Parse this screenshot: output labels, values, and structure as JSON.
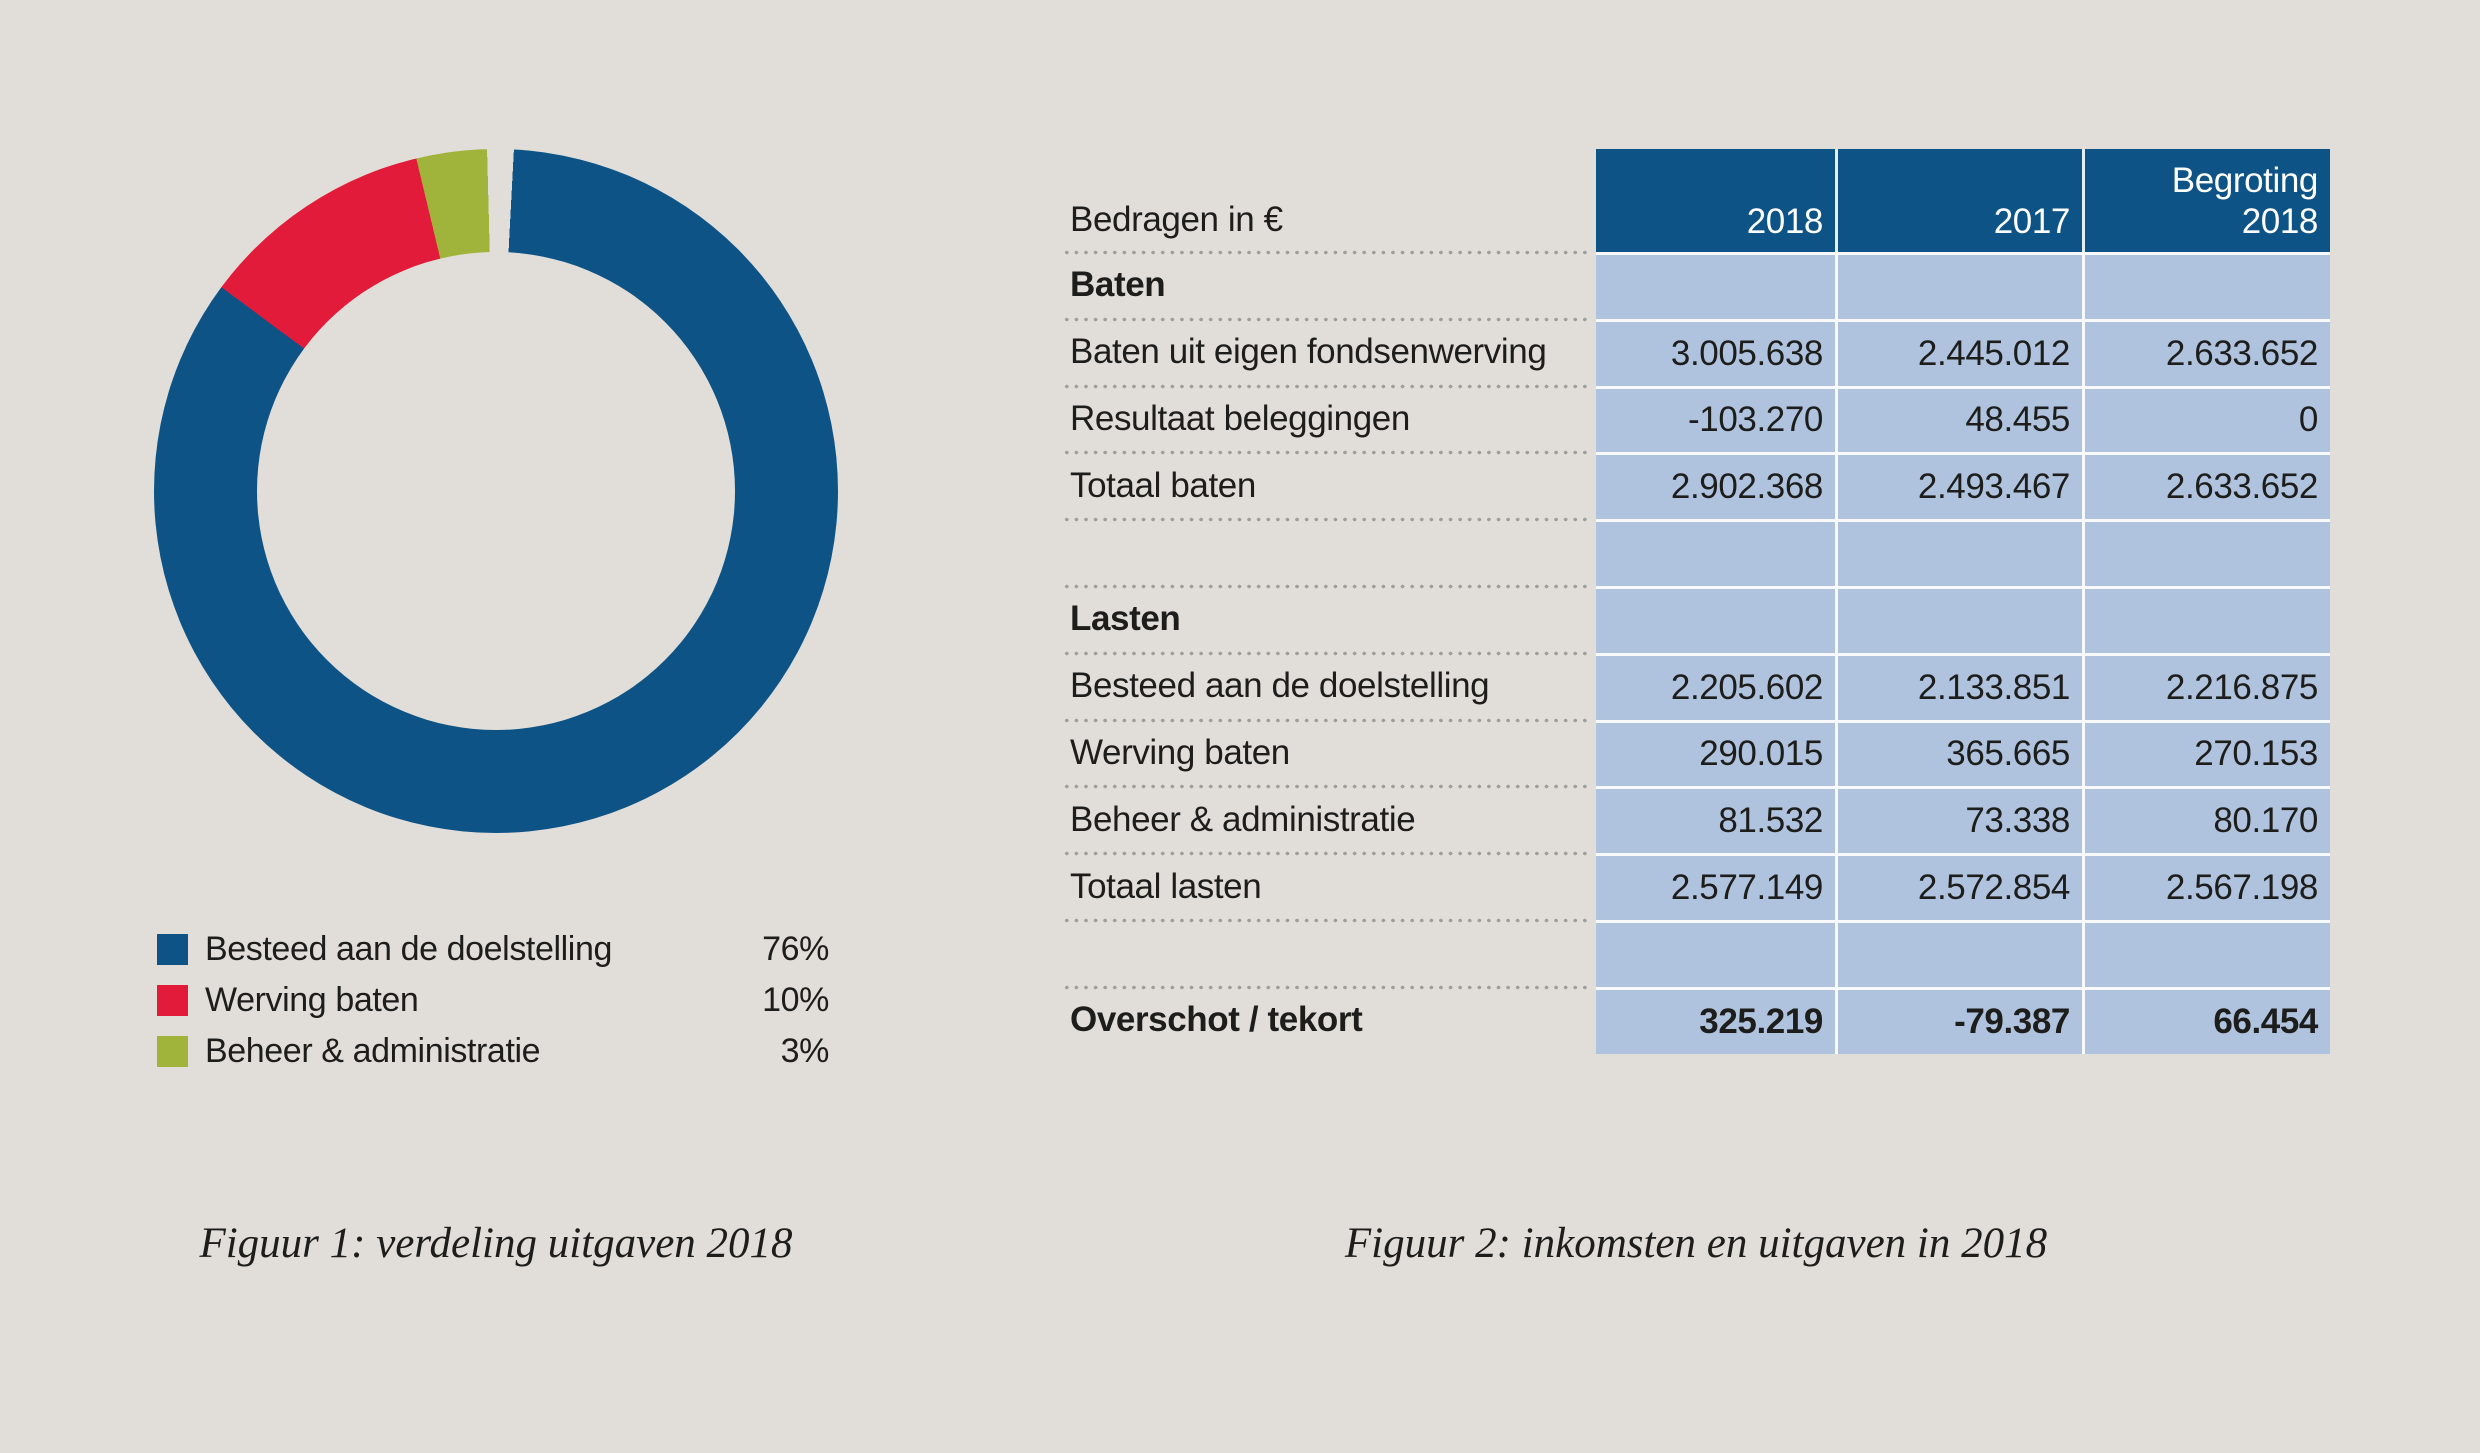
{
  "colors": {
    "background": "#E1DED9",
    "header_blue": "#0E5386",
    "cell_blue": "#B0C3DE",
    "segment_blue": "#0E5386",
    "segment_red": "#E31B3A",
    "segment_green": "#A0B43C",
    "text": "#1D1D1B",
    "dot_gray": "#9E9E9C",
    "divider_white": "rgba(255,255,255,0.9)"
  },
  "chart_data": [
    {
      "type": "pie",
      "subtype": "donut",
      "caption": "Figuur 1: verdeling uitgaven 2018",
      "labels": [
        "Besteed aan de doelstelling",
        "Werving baten",
        "Beheer & administratie"
      ],
      "values": [
        76,
        10,
        3
      ],
      "value_labels": [
        "76%",
        "10%",
        "3%"
      ],
      "colors": [
        "#0E5386",
        "#E31B3A",
        "#A0B43C"
      ],
      "layout": {
        "start_angle_deg": 3,
        "end_angle_deg": 358.5,
        "donut_hole_ratio": 0.7,
        "legend_position": "bottom-left"
      }
    },
    {
      "type": "table",
      "caption": "Figuur 2: inkomsten en uitgaven in 2018",
      "header": {
        "label": "Bedragen in €",
        "columns": [
          "2018",
          "2017",
          "Begroting\n2018"
        ]
      },
      "rows": [
        {
          "label": "Baten",
          "bold": true,
          "values": [
            "",
            "",
            ""
          ]
        },
        {
          "label": "Baten uit eigen fondsenwerving",
          "bold": false,
          "values": [
            "3.005.638",
            "2.445.012",
            "2.633.652"
          ]
        },
        {
          "label": "Resultaat beleggingen",
          "bold": false,
          "values": [
            "-103.270",
            "48.455",
            "0"
          ]
        },
        {
          "label": "Totaal baten",
          "bold": false,
          "values": [
            "2.902.368",
            "2.493.467",
            "2.633.652"
          ]
        },
        {
          "label": "",
          "bold": false,
          "values": [
            "",
            "",
            ""
          ]
        },
        {
          "label": "Lasten",
          "bold": true,
          "values": [
            "",
            "",
            ""
          ]
        },
        {
          "label": "Besteed aan de doelstelling",
          "bold": false,
          "values": [
            "2.205.602",
            "2.133.851",
            "2.216.875"
          ]
        },
        {
          "label": "Werving baten",
          "bold": false,
          "values": [
            "290.015",
            "365.665",
            "270.153"
          ]
        },
        {
          "label": "Beheer & administratie",
          "bold": false,
          "values": [
            "81.532",
            "73.338",
            "80.170"
          ]
        },
        {
          "label": "Totaal lasten",
          "bold": false,
          "values": [
            "2.577.149",
            "2.572.854",
            "2.567.198"
          ]
        },
        {
          "label": "",
          "bold": false,
          "values": [
            "",
            "",
            ""
          ]
        },
        {
          "label": "Overschot / tekort",
          "bold": true,
          "values": [
            "325.219",
            "-79.387",
            "66.454"
          ]
        }
      ]
    }
  ]
}
